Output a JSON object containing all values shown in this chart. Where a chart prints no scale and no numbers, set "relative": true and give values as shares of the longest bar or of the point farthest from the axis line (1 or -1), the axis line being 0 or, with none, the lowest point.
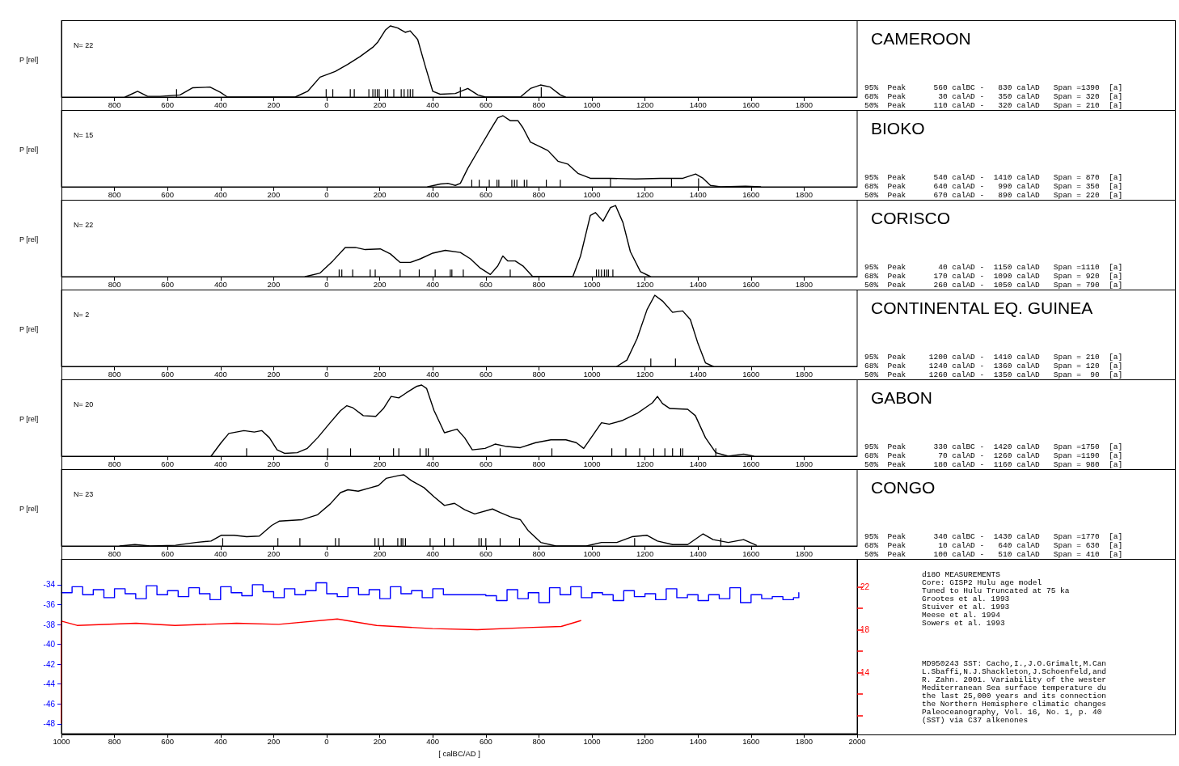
{
  "chart_data": [
    {
      "type": "line",
      "ylabel": "P [rel]",
      "relative": true,
      "xlim": [
        -1000,
        2000
      ],
      "xticks": [
        {
          "value": -800,
          "label": "800"
        },
        {
          "value": -600,
          "label": "600"
        },
        {
          "value": -400,
          "label": "400"
        },
        {
          "value": -200,
          "label": "200"
        },
        0,
        200,
        400,
        600,
        800,
        1000,
        1200,
        1400,
        1600,
        1800
      ],
      "annotations": [
        "CAMEROON",
        "N= 22",
        "95%  Peak      560 calBC -   830 calAD   Span =1390  [a]\n68%  Peak       30 calAD -   350 calAD   Span = 320  [a]\n50%  Peak      110 calAD -   320 calAD   Span = 210  [a]"
      ],
      "series": [
        {
          "color": "#000000",
          "x": [
            -760,
            -713,
            -675,
            -628,
            -553,
            -506,
            -440,
            -402,
            -374,
            -119,
            -72,
            -25,
            32,
            79,
            126,
            174,
            192,
            221,
            240,
            268,
            296,
            315,
            343,
            372,
            400,
            428,
            485,
            532,
            570,
            598,
            730,
            768,
            806,
            843,
            881,
            900
          ],
          "values": [
            0,
            0.08,
            0.01,
            0.01,
            0.03,
            0.13,
            0.14,
            0.07,
            0,
            0,
            0.08,
            0.28,
            0.36,
            0.46,
            0.57,
            0.7,
            0.77,
            0.94,
            1,
            0.97,
            0.91,
            0.93,
            0.81,
            0.43,
            0.08,
            0.04,
            0.05,
            0.12,
            0.03,
            0,
            0,
            0.12,
            0.17,
            0.14,
            0.03,
            0
          ]
        },
        {
          "type": "bar",
          "color": "#000000",
          "x": [
            -566,
            -2,
            23,
            89,
            104,
            159,
            174,
            183,
            191,
            198,
            221,
            230,
            253,
            281,
            292,
            306,
            315,
            325,
            504,
            809
          ],
          "values": [
            0.11,
            0.11,
            0.11,
            0.11,
            0.11,
            0.11,
            0.11,
            0.11,
            0.11,
            0.11,
            0.11,
            0.11,
            0.11,
            0.11,
            0.11,
            0.11,
            0.11,
            0.11,
            0.14,
            0.14
          ]
        }
      ]
    },
    {
      "type": "line",
      "ylabel": "P [rel]",
      "relative": true,
      "xlim": [
        -1000,
        2000
      ],
      "xticks": [
        {
          "value": -800,
          "label": "800"
        },
        {
          "value": -600,
          "label": "600"
        },
        {
          "value": -400,
          "label": "400"
        },
        {
          "value": -200,
          "label": "200"
        },
        0,
        200,
        400,
        600,
        800,
        1000,
        1200,
        1400,
        1600,
        1800
      ],
      "annotations": [
        "BIOKO",
        "N= 15",
        "95%  Peak      540 calAD -  1410 calAD   Span = 870  [a]\n68%  Peak      640 calAD -   990 calAD   Span = 350  [a]\n50%  Peak      670 calAD -   890 calAD   Span = 220  [a]"
      ],
      "series": [
        {
          "color": "#000000",
          "x": [
            381,
            428,
            457,
            485,
            504,
            532,
            579,
            617,
            645,
            664,
            692,
            721,
            740,
            768,
            806,
            834,
            872,
            909,
            947,
            994,
            1070,
            1164,
            1258,
            1343,
            1391,
            1419,
            1447,
            1485,
            1579,
            1636
          ],
          "values": [
            0,
            0.04,
            0.05,
            0.02,
            0.05,
            0.26,
            0.56,
            0.8,
            0.97,
            1,
            0.93,
            0.93,
            0.83,
            0.63,
            0.56,
            0.51,
            0.36,
            0.32,
            0.19,
            0.12,
            0.12,
            0.11,
            0.12,
            0.12,
            0.18,
            0.12,
            0.02,
            0,
            0.01,
            0
          ]
        },
        {
          "type": "bar",
          "color": "#000000",
          "x": [
            547,
            575,
            613,
            642,
            649,
            698,
            708,
            717,
            745,
            755,
            828,
            881,
            1070,
            1300,
            1402
          ],
          "values": [
            0.1,
            0.1,
            0.1,
            0.1,
            0.1,
            0.1,
            0.1,
            0.1,
            0.1,
            0.1,
            0.1,
            0.1,
            0.12,
            0.12,
            0.12
          ]
        }
      ]
    },
    {
      "type": "line",
      "ylabel": "P [rel]",
      "relative": true,
      "xlim": [
        -1000,
        2000
      ],
      "xticks": [
        {
          "value": -800,
          "label": "800"
        },
        {
          "value": -600,
          "label": "600"
        },
        {
          "value": -400,
          "label": "400"
        },
        {
          "value": -200,
          "label": "200"
        },
        0,
        200,
        400,
        600,
        800,
        1000,
        1200,
        1400,
        1600,
        1800
      ],
      "annotations": [
        "CORISCO",
        "N= 22",
        "95%  Peak       40 calAD -  1150 calAD   Span =1110  [a]\n68%  Peak      170 calAD -  1090 calAD   Span = 920  [a]\n50%  Peak      260 calAD -  1050 calAD   Span = 790  [a]"
      ],
      "series": [
        {
          "color": "#000000",
          "x": [
            -81,
            -25,
            23,
            70,
            108,
            145,
            202,
            240,
            277,
            315,
            353,
            400,
            447,
            504,
            542,
            579,
            617,
            645,
            664,
            683,
            711,
            740,
            777,
            928,
            957,
            994,
            1013,
            1042,
            1070,
            1089,
            1117,
            1145,
            1183,
            1221
          ],
          "values": [
            0,
            0.05,
            0.22,
            0.41,
            0.41,
            0.38,
            0.39,
            0.32,
            0.2,
            0.2,
            0.25,
            0.33,
            0.37,
            0.34,
            0.25,
            0.12,
            0.03,
            0.15,
            0.29,
            0.22,
            0.22,
            0.15,
            0,
            0,
            0.29,
            0.86,
            0.9,
            0.78,
            0.97,
            1,
            0.76,
            0.35,
            0.07,
            0
          ]
        },
        {
          "type": "bar",
          "color": "#000000",
          "x": [
            47,
            57,
            98,
            164,
            183,
            277,
            349,
            409,
            466,
            472,
            515,
            692,
            1017,
            1026,
            1036,
            1047,
            1055,
            1062,
            1079
          ],
          "values": [
            0.1,
            0.1,
            0.1,
            0.1,
            0.1,
            0.1,
            0.1,
            0.1,
            0.1,
            0.1,
            0.1,
            0.1,
            0.1,
            0.1,
            0.1,
            0.1,
            0.1,
            0.1,
            0.1
          ]
        }
      ]
    },
    {
      "type": "line",
      "ylabel": "P [rel]",
      "relative": true,
      "xlim": [
        -1000,
        2000
      ],
      "xticks": [
        {
          "value": -800,
          "label": "800"
        },
        {
          "value": -600,
          "label": "600"
        },
        {
          "value": -400,
          "label": "400"
        },
        {
          "value": -200,
          "label": "200"
        },
        0,
        200,
        400,
        600,
        800,
        1000,
        1200,
        1400,
        1600,
        1800
      ],
      "annotations": [
        "CONTINENTAL EQ. GUINEA",
        "N= 2",
        "95%  Peak     1200 calAD -  1410 calAD   Span = 210  [a]\n68%  Peak     1240 calAD -  1360 calAD   Span = 120  [a]\n50%  Peak     1260 calAD -  1350 calAD   Span =  90  [a]"
      ],
      "series": [
        {
          "color": "#000000",
          "x": [
            1094,
            1132,
            1170,
            1208,
            1237,
            1266,
            1304,
            1342,
            1371,
            1400,
            1428,
            1457
          ],
          "values": [
            0,
            0.09,
            0.39,
            0.8,
            1,
            0.92,
            0.76,
            0.78,
            0.66,
            0.32,
            0.05,
            0
          ]
        },
        {
          "type": "bar",
          "color": "#000000",
          "x": [
            1222,
            1315
          ],
          "values": [
            0.11,
            0.11
          ]
        }
      ]
    },
    {
      "type": "line",
      "ylabel": "P [rel]",
      "relative": true,
      "xlim": [
        -1000,
        2000
      ],
      "xticks": [
        {
          "value": -800,
          "label": "800"
        },
        {
          "value": -600,
          "label": "600"
        },
        {
          "value": -400,
          "label": "400"
        },
        {
          "value": -200,
          "label": "200"
        },
        0,
        200,
        400,
        600,
        800,
        1000,
        1200,
        1400,
        1600,
        1800
      ],
      "annotations": [
        "GABON",
        "N= 20",
        "95%  Peak      330 calBC -  1420 calAD   Span =1750  [a]\n68%  Peak       70 calAD -  1260 calAD   Span =1190  [a]\n50%  Peak      180 calAD -  1160 calAD   Span = 980  [a]"
      ],
      "series": [
        {
          "color": "#000000",
          "x": [
            -436,
            -398,
            -369,
            -312,
            -273,
            -245,
            -216,
            -187,
            -159,
            -111,
            -73,
            -34,
            13,
            52,
            76,
            99,
            138,
            185,
            214,
            243,
            272,
            300,
            338,
            358,
            377,
            405,
            444,
            472,
            491,
            520,
            549,
            597,
            635,
            673,
            730,
            788,
            845,
            902,
            941,
            969,
            1036,
            1065,
            1113,
            1170,
            1228,
            1247,
            1266,
            1294,
            1361,
            1390,
            1428,
            1467,
            1514,
            1572,
            1610
          ],
          "values": [
            0,
            0.19,
            0.32,
            0.36,
            0.34,
            0.36,
            0.26,
            0.09,
            0.04,
            0.05,
            0.11,
            0.26,
            0.47,
            0.64,
            0.71,
            0.68,
            0.57,
            0.56,
            0.67,
            0.84,
            0.82,
            0.89,
            0.98,
            1,
            0.95,
            0.64,
            0.33,
            0.36,
            0.38,
            0.26,
            0.09,
            0.11,
            0.17,
            0.14,
            0.12,
            0.19,
            0.23,
            0.23,
            0.19,
            0.11,
            0.47,
            0.45,
            0.5,
            0.6,
            0.75,
            0.84,
            0.74,
            0.67,
            0.66,
            0.57,
            0.26,
            0.05,
            0,
            0.03,
            0
          ]
        },
        {
          "type": "bar",
          "color": "#000000",
          "x": [
            -302,
            4,
            90,
            252,
            272,
            352,
            375,
            383,
            654,
            849,
            1075,
            1128,
            1180,
            1233,
            1275,
            1304,
            1334,
            1342,
            1467
          ],
          "values": [
            0.11,
            0.11,
            0.11,
            0.11,
            0.11,
            0.11,
            0.11,
            0.11,
            0.11,
            0.11,
            0.11,
            0.11,
            0.11,
            0.11,
            0.11,
            0.11,
            0.11,
            0.11,
            0.11
          ]
        }
      ]
    },
    {
      "type": "line",
      "ylabel": "P [rel]",
      "relative": true,
      "xlim": [
        -1000,
        2000
      ],
      "xticks": [
        {
          "value": -800,
          "label": "800"
        },
        {
          "value": -600,
          "label": "600"
        },
        {
          "value": -400,
          "label": "400"
        },
        {
          "value": -200,
          "label": "200"
        },
        0,
        200,
        400,
        600,
        800,
        1000,
        1200,
        1400,
        1600,
        1800
      ],
      "annotations": [
        "CONGO",
        "N= 23",
        "95%  Peak      340 calBC -  1430 calAD   Span =1770  [a]\n68%  Peak       10 calAD -   640 calAD   Span = 630  [a]\n50%  Peak      100 calAD -   510 calAD   Span = 410  [a]"
      ],
      "series": [
        {
          "color": "#000000",
          "x": [
            -780,
            -723,
            -665,
            -570,
            -493,
            -436,
            -398,
            -350,
            -302,
            -254,
            -207,
            -178,
            -92,
            -34,
            13,
            52,
            80,
            119,
            166,
            195,
            224,
            272,
            291,
            319,
            367,
            405,
            444,
            482,
            520,
            558,
            625,
            654,
            692,
            730,
            759,
            807,
            864,
            979,
            1036,
            1094,
            1151,
            1208,
            1247,
            1304,
            1361,
            1419,
            1457,
            1514,
            1572,
            1620
          ],
          "values": [
            0,
            0.02,
            0,
            0.01,
            0.05,
            0.07,
            0.15,
            0.15,
            0.13,
            0.14,
            0.29,
            0.35,
            0.37,
            0.44,
            0.59,
            0.75,
            0.79,
            0.77,
            0.82,
            0.85,
            0.95,
            0.99,
            1,
            0.92,
            0.82,
            0.69,
            0.57,
            0.6,
            0.51,
            0.45,
            0.52,
            0.47,
            0.41,
            0.37,
            0.22,
            0.05,
            0,
            0,
            0.05,
            0.05,
            0.13,
            0.15,
            0.07,
            0.02,
            0.02,
            0.17,
            0.09,
            0.05,
            0.09,
            0.01
          ]
        },
        {
          "type": "bar",
          "color": "#000000",
          "x": [
            -392,
            -184,
            -101,
            33,
            46,
            182,
            195,
            214,
            268,
            281,
            287,
            297,
            390,
            444,
            478,
            574,
            583,
            600,
            654,
            727,
            1161,
            1486
          ],
          "values": [
            0.11,
            0.11,
            0.11,
            0.11,
            0.11,
            0.11,
            0.11,
            0.11,
            0.11,
            0.11,
            0.11,
            0.11,
            0.11,
            0.11,
            0.11,
            0.11,
            0.11,
            0.11,
            0.11,
            0.11,
            0.11,
            0.11
          ]
        }
      ]
    },
    {
      "type": "line",
      "xlabel": "[ calBC/AD ]",
      "xlim": [
        -1000,
        2000
      ],
      "xticks": [
        {
          "value": -1000,
          "label": "1000"
        },
        {
          "value": -800,
          "label": "800"
        },
        {
          "value": -600,
          "label": "600"
        },
        {
          "value": -400,
          "label": "400"
        },
        {
          "value": -200,
          "label": "200"
        },
        0,
        200,
        400,
        600,
        800,
        1000,
        1200,
        1400,
        1600,
        1800,
        2000
      ],
      "ylim": [
        -49,
        -31.4
      ],
      "yticks": [
        -34,
        -36,
        -38,
        -40,
        -42,
        -44,
        -46,
        -48
      ],
      "y2lim": [
        8.3,
        24.6
      ],
      "y2ticks": [
        22,
        {
          "value": 20,
          "label": null
        },
        18,
        {
          "value": 16,
          "label": null
        },
        14,
        {
          "value": 12,
          "label": null
        },
        {
          "value": 10,
          "label": null
        }
      ],
      "annotations": [
        "d18O MEASUREMENTS\nCore: GISP2 Hulu age model\nTuned to Hulu Truncated at 75 ka\nGrootes et al. 1993\nStuiver et al. 1993\nMeese et al. 1994\nSowers et al. 1993",
        "MD950243 SST: Cacho,I.,J.O.Grimalt,M.Can\nL.Sbaffi,N.J.Shackleton,J.Schoenfeld,and\nR. Zahn. 2001. Variability of the wester\nMediterranean Sea surface temperature du\nthe last 25,000 years and its connection\nthe Northern Hemisphere climatic changes\nPaleoceanography, Vol. 16, No. 1, p. 40\n(SST) via C37 alkenones"
      ],
      "series": [
        {
          "type": "step",
          "color": "#0000ff",
          "x": [
            -1000,
            -960,
            -920,
            -880,
            -840,
            -800,
            -760,
            -720,
            -680,
            -640,
            -600,
            -560,
            -520,
            -480,
            -440,
            -400,
            -360,
            -320,
            -280,
            -240,
            -200,
            -160,
            -120,
            -80,
            -40,
            0,
            40,
            80,
            120,
            160,
            200,
            240,
            280,
            320,
            360,
            400,
            440,
            480,
            520,
            560,
            600,
            640,
            680,
            720,
            760,
            800,
            840,
            880,
            920,
            960,
            1000,
            1040,
            1080,
            1120,
            1160,
            1200,
            1240,
            1280,
            1320,
            1360,
            1400,
            1440,
            1480,
            1520,
            1560,
            1600,
            1640,
            1680,
            1720,
            1760,
            1780
          ],
          "values": [
            -34.8,
            -34.2,
            -35.0,
            -34.5,
            -35.3,
            -34.4,
            -34.9,
            -35.4,
            -34.1,
            -35.0,
            -34.6,
            -35.2,
            -34.3,
            -34.9,
            -35.5,
            -34.2,
            -34.8,
            -35.1,
            -34.0,
            -34.7,
            -35.3,
            -34.4,
            -35.0,
            -34.6,
            -33.8,
            -34.9,
            -35.2,
            -34.3,
            -35.0,
            -34.5,
            -35.4,
            -34.2,
            -34.9,
            -34.6,
            -35.3,
            -34.4,
            -35.0,
            -35.0,
            -35.0,
            -35.0,
            -35.1,
            -35.6,
            -34.5,
            -35.4,
            -34.8,
            -35.8,
            -34.3,
            -35.0,
            -34.2,
            -35.3,
            -34.8,
            -35.0,
            -35.6,
            -34.6,
            -35.2,
            -34.9,
            -35.5,
            -34.4,
            -35.3,
            -35.0,
            -35.6,
            -35.0,
            -35.4,
            -34.3,
            -35.8,
            -35.0,
            -35.4,
            -35.2,
            -35.5,
            -35.3,
            -34.8
          ]
        },
        {
          "color": "#ff0000",
          "axis": "y2",
          "x": [
            -1000,
            -1000,
            -941,
            -719,
            -572,
            -340,
            -181,
            40,
            188,
            399,
            568,
            757,
            884,
            958
          ],
          "values": [
            9.3,
            18.8,
            18.4,
            18.6,
            18.4,
            18.6,
            18.5,
            19.0,
            18.4,
            18.1,
            18.0,
            18.2,
            18.3,
            18.85
          ]
        }
      ]
    }
  ]
}
